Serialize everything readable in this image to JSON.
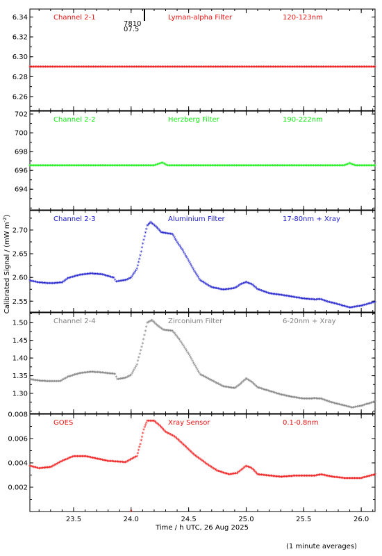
{
  "chart_data": {
    "type": "scatter",
    "xlabel": "Time / h UTC, 26 Aug 2025",
    "ylabel": "Calibrated Signal / (mW m",
    "ylabel_sup": "-2",
    "ylabel_end": ")",
    "xlim": [
      23.12,
      26.12
    ],
    "xticks": [
      "23.5",
      "24.0",
      "24.5",
      "25.0",
      "25.5",
      "26.0"
    ],
    "xtick_values": [
      23.5,
      24.0,
      24.5,
      25.0,
      25.5,
      26.0
    ],
    "note": "(1 minute averages)",
    "panels": [
      {
        "channel": "Channel 2-1",
        "filter": "Lyman-alpha Filter",
        "band": "120-123nm",
        "color": "#ee1111",
        "ylim": [
          6.246,
          6.348
        ],
        "yticks": [
          "6.26",
          "6.28",
          "6.30",
          "6.32",
          "6.34"
        ],
        "ytick_values": [
          6.26,
          6.28,
          6.3,
          6.32,
          6.34
        ],
        "annotation_top": "7810",
        "annotation_bottom": "07.5",
        "series": [
          [
            23.12,
            6.2893
          ],
          [
            26.12,
            6.2893
          ]
        ]
      },
      {
        "channel": "Channel 2-2",
        "filter": "Herzberg Filter",
        "band": "190-222nm",
        "color": "#11ee11",
        "ylim": [
          691.8,
          702.3
        ],
        "yticks": [
          "694",
          "696",
          "698",
          "700",
          "702"
        ],
        "ytick_values": [
          694,
          696,
          698,
          700,
          702
        ],
        "series": [
          [
            23.12,
            696.45
          ],
          [
            24.2,
            696.45
          ],
          [
            24.27,
            696.75
          ],
          [
            24.32,
            696.45
          ],
          [
            25.85,
            696.45
          ],
          [
            25.9,
            696.7
          ],
          [
            25.95,
            696.45
          ],
          [
            26.12,
            696.45
          ]
        ]
      },
      {
        "channel": "Channel 2-3",
        "filter": "Aluminium Filter",
        "band": "17-80nm + Xray",
        "color": "#1a1acc",
        "ylim": [
          2.527,
          2.741
        ],
        "yticks": [
          "2.55",
          "2.60",
          "2.65",
          "2.70"
        ],
        "ytick_values": [
          2.55,
          2.6,
          2.65,
          2.7
        ],
        "series": [
          [
            23.12,
            2.592
          ],
          [
            23.2,
            2.588
          ],
          [
            23.3,
            2.586
          ],
          [
            23.4,
            2.588
          ],
          [
            23.45,
            2.597
          ],
          [
            23.55,
            2.604
          ],
          [
            23.65,
            2.607
          ],
          [
            23.75,
            2.605
          ],
          [
            23.85,
            2.598
          ],
          [
            23.87,
            2.59
          ],
          [
            23.95,
            2.593
          ],
          [
            24.0,
            2.598
          ],
          [
            24.05,
            2.617
          ],
          [
            24.08,
            2.645
          ],
          [
            24.11,
            2.678
          ],
          [
            24.14,
            2.708
          ],
          [
            24.17,
            2.715
          ],
          [
            24.22,
            2.705
          ],
          [
            24.26,
            2.694
          ],
          [
            24.3,
            2.692
          ],
          [
            24.36,
            2.69
          ],
          [
            24.4,
            2.673
          ],
          [
            24.45,
            2.655
          ],
          [
            24.5,
            2.634
          ],
          [
            24.55,
            2.612
          ],
          [
            24.6,
            2.593
          ],
          [
            24.65,
            2.585
          ],
          [
            24.7,
            2.578
          ],
          [
            24.8,
            2.573
          ],
          [
            24.9,
            2.576
          ],
          [
            24.95,
            2.584
          ],
          [
            25.0,
            2.589
          ],
          [
            25.05,
            2.584
          ],
          [
            25.1,
            2.574
          ],
          [
            25.2,
            2.565
          ],
          [
            25.3,
            2.562
          ],
          [
            25.4,
            2.558
          ],
          [
            25.5,
            2.554
          ],
          [
            25.6,
            2.552
          ],
          [
            25.65,
            2.553
          ],
          [
            25.7,
            2.548
          ],
          [
            25.8,
            2.542
          ],
          [
            25.9,
            2.535
          ],
          [
            26.0,
            2.539
          ],
          [
            26.12,
            2.547
          ]
        ]
      },
      {
        "channel": "Channel 2-4",
        "filter": "Zirconium Filter",
        "band": "6-20nm + Xray",
        "color": "#808080",
        "ylim": [
          1.243,
          1.528
        ],
        "yticks": [
          "1.30",
          "1.35",
          "1.40",
          "1.45",
          "1.50"
        ],
        "ytick_values": [
          1.3,
          1.35,
          1.4,
          1.45,
          1.5
        ],
        "series": [
          [
            23.12,
            1.338
          ],
          [
            23.2,
            1.334
          ],
          [
            23.3,
            1.332
          ],
          [
            23.38,
            1.332
          ],
          [
            23.45,
            1.345
          ],
          [
            23.55,
            1.355
          ],
          [
            23.65,
            1.359
          ],
          [
            23.75,
            1.357
          ],
          [
            23.86,
            1.353
          ],
          [
            23.88,
            1.338
          ],
          [
            23.95,
            1.342
          ],
          [
            24.0,
            1.35
          ],
          [
            24.05,
            1.38
          ],
          [
            24.1,
            1.44
          ],
          [
            24.14,
            1.498
          ],
          [
            24.18,
            1.505
          ],
          [
            24.23,
            1.49
          ],
          [
            24.28,
            1.478
          ],
          [
            24.36,
            1.475
          ],
          [
            24.42,
            1.45
          ],
          [
            24.5,
            1.41
          ],
          [
            24.55,
            1.38
          ],
          [
            24.6,
            1.352
          ],
          [
            24.7,
            1.335
          ],
          [
            24.8,
            1.318
          ],
          [
            24.9,
            1.313
          ],
          [
            24.95,
            1.325
          ],
          [
            25.0,
            1.34
          ],
          [
            25.05,
            1.33
          ],
          [
            25.1,
            1.315
          ],
          [
            25.2,
            1.305
          ],
          [
            25.3,
            1.295
          ],
          [
            25.4,
            1.288
          ],
          [
            25.5,
            1.283
          ],
          [
            25.6,
            1.284
          ],
          [
            25.65,
            1.283
          ],
          [
            25.75,
            1.272
          ],
          [
            25.85,
            1.264
          ],
          [
            25.92,
            1.258
          ],
          [
            26.0,
            1.263
          ],
          [
            26.12,
            1.275
          ]
        ]
      },
      {
        "channel": "GOES",
        "filter": "Xray Sensor",
        "band": "0.1-0.8nm",
        "color": "#ee1111",
        "ylim": [
          0.0,
          0.008
        ],
        "yticks": [
          "0.002",
          "0.004",
          "0.006",
          "0.008"
        ],
        "ytick_values": [
          0.002,
          0.004,
          0.006,
          0.008
        ],
        "series": [
          [
            23.12,
            0.0037
          ],
          [
            23.2,
            0.0035
          ],
          [
            23.3,
            0.0036
          ],
          [
            23.4,
            0.0041
          ],
          [
            23.5,
            0.0045
          ],
          [
            23.6,
            0.0045
          ],
          [
            23.7,
            0.0043
          ],
          [
            23.8,
            0.0041
          ],
          [
            23.95,
            0.004
          ],
          [
            24.05,
            0.0045
          ],
          [
            24.08,
            0.0055
          ],
          [
            24.11,
            0.0067
          ],
          [
            24.14,
            0.0074
          ],
          [
            24.2,
            0.0074
          ],
          [
            24.25,
            0.007
          ],
          [
            24.3,
            0.0065
          ],
          [
            24.38,
            0.0061
          ],
          [
            24.45,
            0.0055
          ],
          [
            24.55,
            0.0046
          ],
          [
            24.65,
            0.0039
          ],
          [
            24.75,
            0.0033
          ],
          [
            24.85,
            0.003
          ],
          [
            24.92,
            0.0031
          ],
          [
            25.0,
            0.0037
          ],
          [
            25.05,
            0.0035
          ],
          [
            25.1,
            0.003
          ],
          [
            25.2,
            0.0029
          ],
          [
            25.3,
            0.0028
          ],
          [
            25.45,
            0.0029
          ],
          [
            25.6,
            0.0029
          ],
          [
            25.65,
            0.003
          ],
          [
            25.75,
            0.0028
          ],
          [
            25.85,
            0.0027
          ],
          [
            26.0,
            0.0027
          ],
          [
            26.12,
            0.003
          ]
        ]
      }
    ]
  }
}
